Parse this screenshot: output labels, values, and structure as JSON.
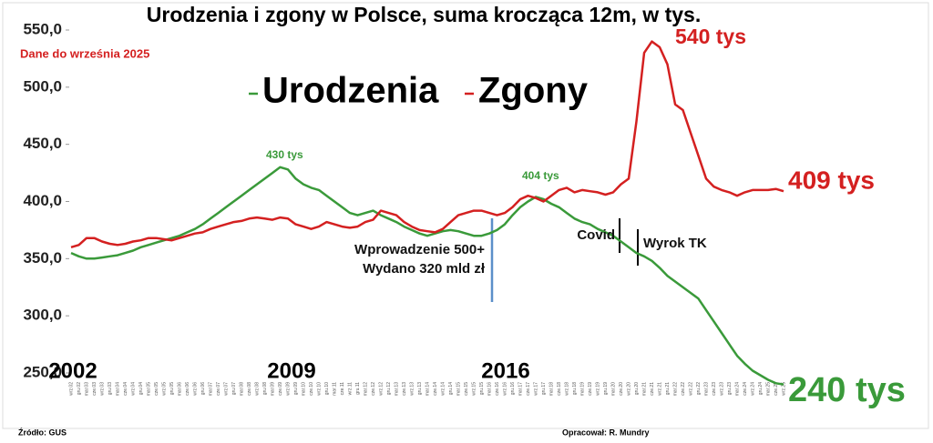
{
  "chart_data": {
    "type": "line",
    "title": "Urodzenia i zgony w Polsce, suma krocząca 12m, w tys.",
    "categories": [
      "wrz.02",
      "gru.02",
      "mar.03",
      "cze.03",
      "wrz.03",
      "gru.03",
      "mar.04",
      "cze.04",
      "wrz.04",
      "gru.04",
      "mar.05",
      "cze.05",
      "wrz.05",
      "gru.05",
      "mar.06",
      "cze.06",
      "wrz.06",
      "gru.06",
      "mar.07",
      "cze.07",
      "wrz.07",
      "gru.07",
      "mar.08",
      "cze.08",
      "wrz.08",
      "gru.08",
      "mar.09",
      "cze.09",
      "wrz.09",
      "gru.09",
      "mar.10",
      "cze.10",
      "wrz.10",
      "gru.10",
      "mar.11",
      "cze.11",
      "wrz.11",
      "gru.11",
      "mar.12",
      "cze.12",
      "wrz.12",
      "gru.12",
      "mar.13",
      "cze.13",
      "wrz.13",
      "gru.13",
      "mar.14",
      "cze.14",
      "wrz.14",
      "gru.14",
      "mar.15",
      "cze.15",
      "wrz.15",
      "gru.15",
      "mar.16",
      "cze.16",
      "wrz.16",
      "gru.16",
      "mar.17",
      "cze.17",
      "wrz.17",
      "gru.17",
      "mar.18",
      "cze.18",
      "wrz.18",
      "gru.18",
      "mar.19",
      "cze.19",
      "wrz.19",
      "gru.19",
      "mar.20",
      "cze.20",
      "wrz.20",
      "gru.20",
      "mar.21",
      "cze.21",
      "wrz.21",
      "gru.21",
      "mar.22",
      "cze.22",
      "wrz.22",
      "gru.22",
      "mar.23",
      "cze.23",
      "wrz.23",
      "gru.23",
      "mar.24",
      "cze.24",
      "wrz.24",
      "gru.24",
      "mar.25",
      "cze.25",
      "wrz.25"
    ],
    "series": [
      {
        "name": "Urodzenia",
        "color": "#3a9a3a",
        "values": [
          355,
          352,
          350,
          350,
          351,
          352,
          353,
          355,
          357,
          360,
          362,
          364,
          366,
          368,
          370,
          373,
          376,
          380,
          385,
          390,
          395,
          400,
          405,
          410,
          415,
          420,
          425,
          430,
          428,
          420,
          415,
          412,
          410,
          405,
          400,
          395,
          390,
          388,
          390,
          392,
          388,
          385,
          382,
          378,
          375,
          372,
          370,
          372,
          374,
          375,
          374,
          372,
          370,
          370,
          372,
          375,
          380,
          388,
          395,
          400,
          404,
          402,
          398,
          395,
          390,
          385,
          382,
          380,
          376,
          373,
          370,
          365,
          360,
          355,
          352,
          348,
          342,
          335,
          330,
          325,
          320,
          315,
          305,
          295,
          285,
          275,
          265,
          258,
          252,
          248,
          244,
          241,
          240
        ]
      },
      {
        "name": "Zgony",
        "color": "#d42020",
        "values": [
          360,
          362,
          368,
          368,
          365,
          363,
          362,
          363,
          365,
          366,
          368,
          368,
          367,
          366,
          368,
          370,
          372,
          373,
          376,
          378,
          380,
          382,
          383,
          385,
          386,
          385,
          384,
          386,
          385,
          380,
          378,
          376,
          378,
          382,
          380,
          378,
          377,
          378,
          382,
          384,
          392,
          390,
          388,
          382,
          378,
          375,
          374,
          373,
          376,
          382,
          388,
          390,
          392,
          392,
          390,
          388,
          390,
          395,
          402,
          405,
          403,
          400,
          405,
          410,
          412,
          408,
          410,
          409,
          408,
          406,
          408,
          415,
          420,
          470,
          530,
          540,
          535,
          520,
          485,
          480,
          460,
          440,
          420,
          413,
          410,
          408,
          405,
          408,
          410,
          410,
          410,
          411,
          409
        ]
      }
    ],
    "ylim": [
      250,
      550
    ],
    "yticks": [
      {
        "value": 250,
        "label": "250,0"
      },
      {
        "value": 300,
        "label": "300,0"
      },
      {
        "value": 350,
        "label": "350,0"
      },
      {
        "value": 400,
        "label": "400,0"
      },
      {
        "value": 450,
        "label": "450,0"
      },
      {
        "value": 500,
        "label": "500,0"
      },
      {
        "value": 550,
        "label": "550,0"
      }
    ],
    "year_labels": [
      "2002",
      "2009",
      "2016"
    ],
    "subtitle": "Dane do września 2025",
    "annotations": [
      "430 tys",
      "404 tys",
      "540 tys",
      "409 tys",
      "240 tys",
      "Wprowadzenie 500+",
      "Wydano 320 mld zł",
      "Covid",
      "Wyrok TK"
    ],
    "source": "Źródło: GUS",
    "author": "Opracował: R. Mundry"
  }
}
